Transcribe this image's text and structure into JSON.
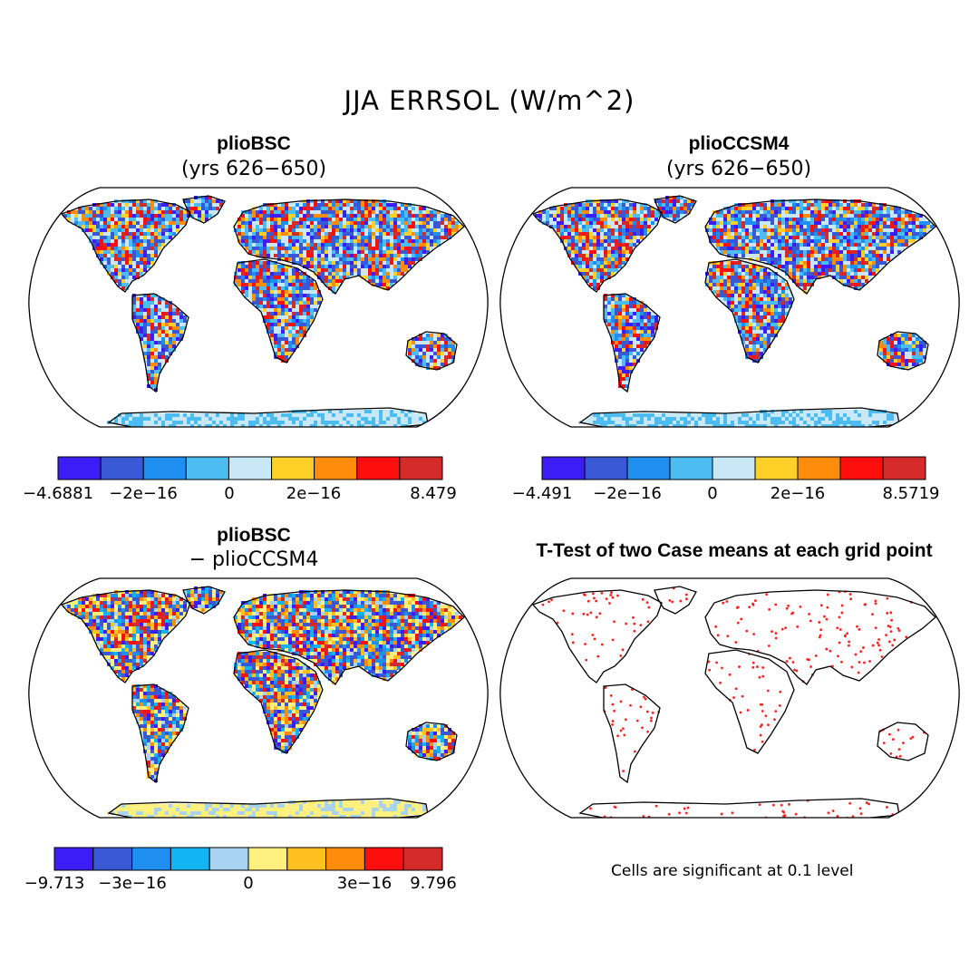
{
  "title": "JJA ERRSOL (W/m^2)",
  "panels": [
    {
      "id": "bsc",
      "title": "plioBSC",
      "subtitle": "(yrs 626−650)"
    },
    {
      "id": "ccsm4",
      "title": "plioCCSM4",
      "subtitle": "(yrs 626−650)"
    },
    {
      "id": "diff",
      "title": "plioBSC",
      "subtitle": "− plioCCSM4"
    },
    {
      "id": "ttest",
      "title": "T-Test of two Case means at each grid point",
      "subtitle": ""
    }
  ],
  "colorbars": [
    {
      "id": "bsc",
      "colors": [
        "#3d1cf7",
        "#3858d6",
        "#1e8ff0",
        "#4dbcf0",
        "#c8e8f7",
        "#ffd028",
        "#ff8c0a",
        "#ff0e0e",
        "#d42a2a"
      ],
      "tick_labels": [
        "−4.6881",
        "−2e−16",
        "0",
        "2e−16",
        "8.479"
      ]
    },
    {
      "id": "ccsm4",
      "colors": [
        "#3d1cf7",
        "#3858d6",
        "#1e8ff0",
        "#4dbcf0",
        "#c8e8f7",
        "#ffd028",
        "#ff8c0a",
        "#ff0e0e",
        "#d42a2a"
      ],
      "tick_labels": [
        "−4.491",
        "−2e−16",
        "0",
        "2e−16",
        "8.5719"
      ]
    },
    {
      "id": "diff",
      "colors": [
        "#3d1cf7",
        "#3858d6",
        "#1e8ff0",
        "#12b4f2",
        "#a8d4f2",
        "#fff080",
        "#ffc020",
        "#ff8c0a",
        "#ff0e0e",
        "#d42a2a"
      ],
      "tick_labels": [
        "−9.713",
        "−3e−16",
        "0",
        "3e−16",
        "9.796"
      ]
    }
  ],
  "note": "Cells are significant at 0.1 level"
}
